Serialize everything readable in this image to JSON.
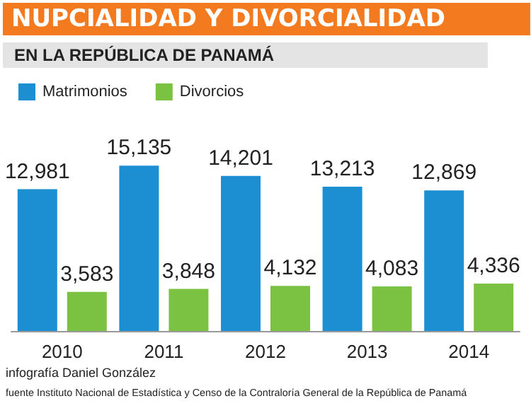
{
  "chart_data": {
    "type": "bar",
    "title": "NUPCIALIDAD Y DIVORCIALIDAD",
    "subtitle": "EN LA REPÚBLICA DE PANAMÁ",
    "categories": [
      "2010",
      "2011",
      "2012",
      "2013",
      "2014"
    ],
    "series": [
      {
        "name": "Matrimonios",
        "color": "#1b8fd2",
        "values": [
          12981,
          15135,
          14201,
          13213,
          12869
        ],
        "value_labels": [
          "12,981",
          "15,135",
          "14,201",
          "13,213",
          "12,869"
        ]
      },
      {
        "name": "Divorcios",
        "color": "#7cc242",
        "values": [
          3583,
          3848,
          4132,
          4083,
          4336
        ],
        "value_labels": [
          "3,583",
          "3,848",
          "4,132",
          "4,083",
          "4,336"
        ]
      }
    ],
    "legend": "top left",
    "annotations": [
      "infografía Daniel González",
      "fuente Instituto Nacional de Estadística y Censo de la Contraloría General de la República de Panamá"
    ]
  }
}
